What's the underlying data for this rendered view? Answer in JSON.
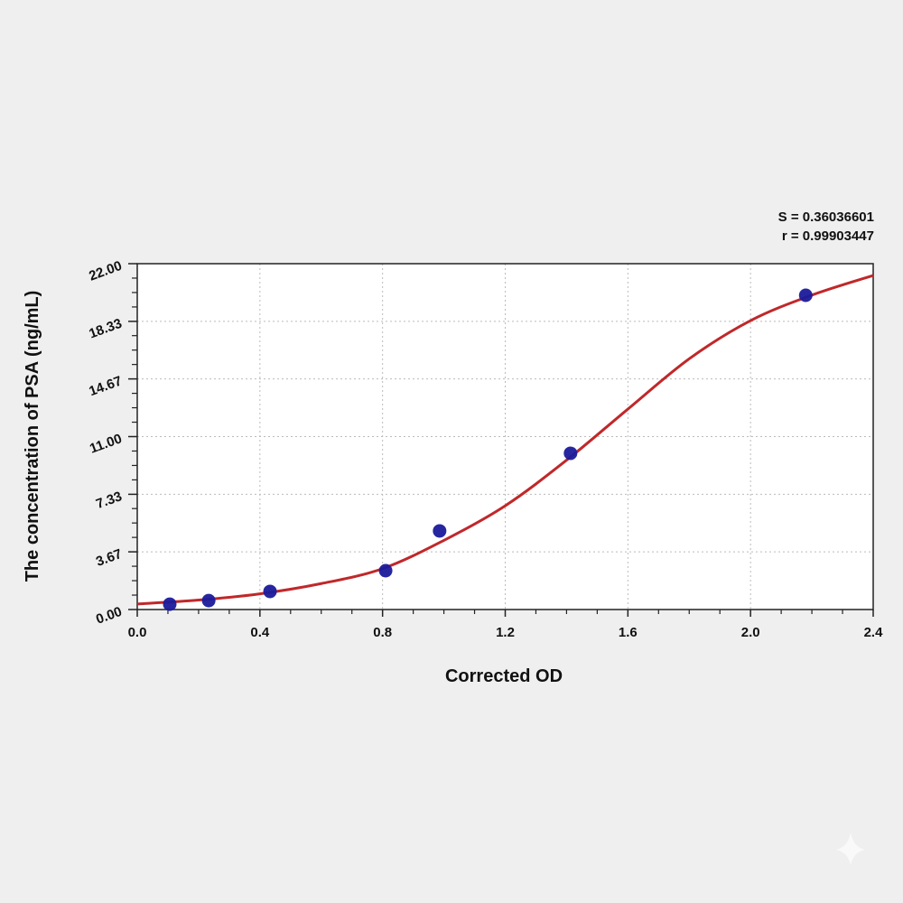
{
  "chart_data": {
    "type": "scatter",
    "title": "",
    "xlabel": "Corrected OD",
    "ylabel": "The concentration of PSA (ng/mL)",
    "xlim": [
      0,
      2.4
    ],
    "ylim": [
      0,
      22
    ],
    "xticks": [
      "0.0",
      "0.4",
      "0.8",
      "1.2",
      "1.6",
      "2.0",
      "2.4"
    ],
    "yticks": [
      "0.00",
      "3.67",
      "7.33",
      "11.00",
      "14.67",
      "18.33",
      "22.00"
    ],
    "grid": true,
    "annotations": {
      "s": "S = 0.36036601",
      "r": "r = 0.99903447"
    },
    "points": {
      "color": "#1a1a9c",
      "x": [
        0.106,
        0.233,
        0.433,
        0.81,
        0.986,
        1.413,
        2.18
      ],
      "y": [
        0.34,
        0.57,
        1.15,
        2.47,
        5.0,
        9.94,
        19.99
      ]
    },
    "fit_curve": {
      "color": "#c0282a",
      "x": [
        0,
        0.2,
        0.4,
        0.6,
        0.8,
        1.0,
        1.2,
        1.4,
        1.6,
        1.8,
        2.0,
        2.2,
        2.4
      ],
      "y": [
        0.35,
        0.6,
        1.0,
        1.65,
        2.6,
        4.4,
        6.6,
        9.5,
        12.75,
        15.95,
        18.38,
        20.0,
        21.25
      ]
    }
  }
}
